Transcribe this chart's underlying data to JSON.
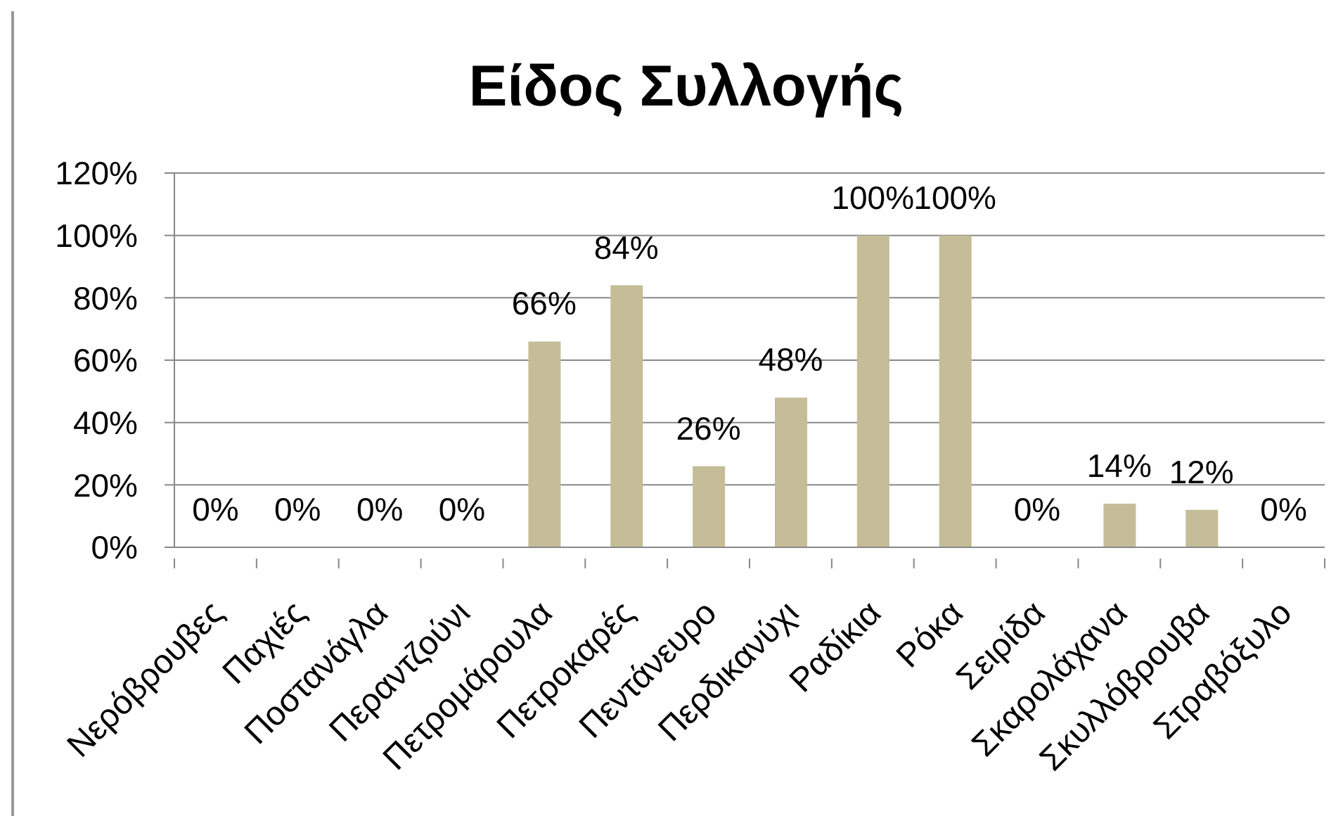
{
  "chart_data": {
    "type": "bar",
    "title": "Είδος Συλλογής",
    "categories": [
      "Νερόβρουβες",
      "Παχιές",
      "Ποστανάγλα",
      "Περαντζούνι",
      "Πετρομάρουλα",
      "Πετροκαρές",
      "Πεντάνευρο",
      "Περδικανύχι",
      "Ραδίκια",
      "Ρόκα",
      "Σειρίδα",
      "Σκαρολάχανα",
      "Σκυλλόβρουβα",
      "Στραβόξυλο"
    ],
    "values": [
      0,
      0,
      0,
      0,
      66,
      84,
      26,
      48,
      100,
      100,
      0,
      14,
      12,
      0
    ],
    "color": "#c4bd97",
    "value_labels": [
      "0%",
      "0%",
      "0%",
      "0%",
      "66%",
      "84%",
      "26%",
      "48%",
      "100%",
      "100%",
      "0%",
      "14%",
      "12%",
      "0%"
    ],
    "ylim": [
      0,
      120
    ],
    "yticks": [
      {
        "value": 0,
        "label": "0%"
      },
      {
        "value": 20,
        "label": "20%"
      },
      {
        "value": 40,
        "label": "40%"
      },
      {
        "value": 60,
        "label": "60%"
      },
      {
        "value": 80,
        "label": "80%"
      },
      {
        "value": 100,
        "label": "100%"
      },
      {
        "value": 120,
        "label": "120%"
      }
    ],
    "grid": "y"
  }
}
